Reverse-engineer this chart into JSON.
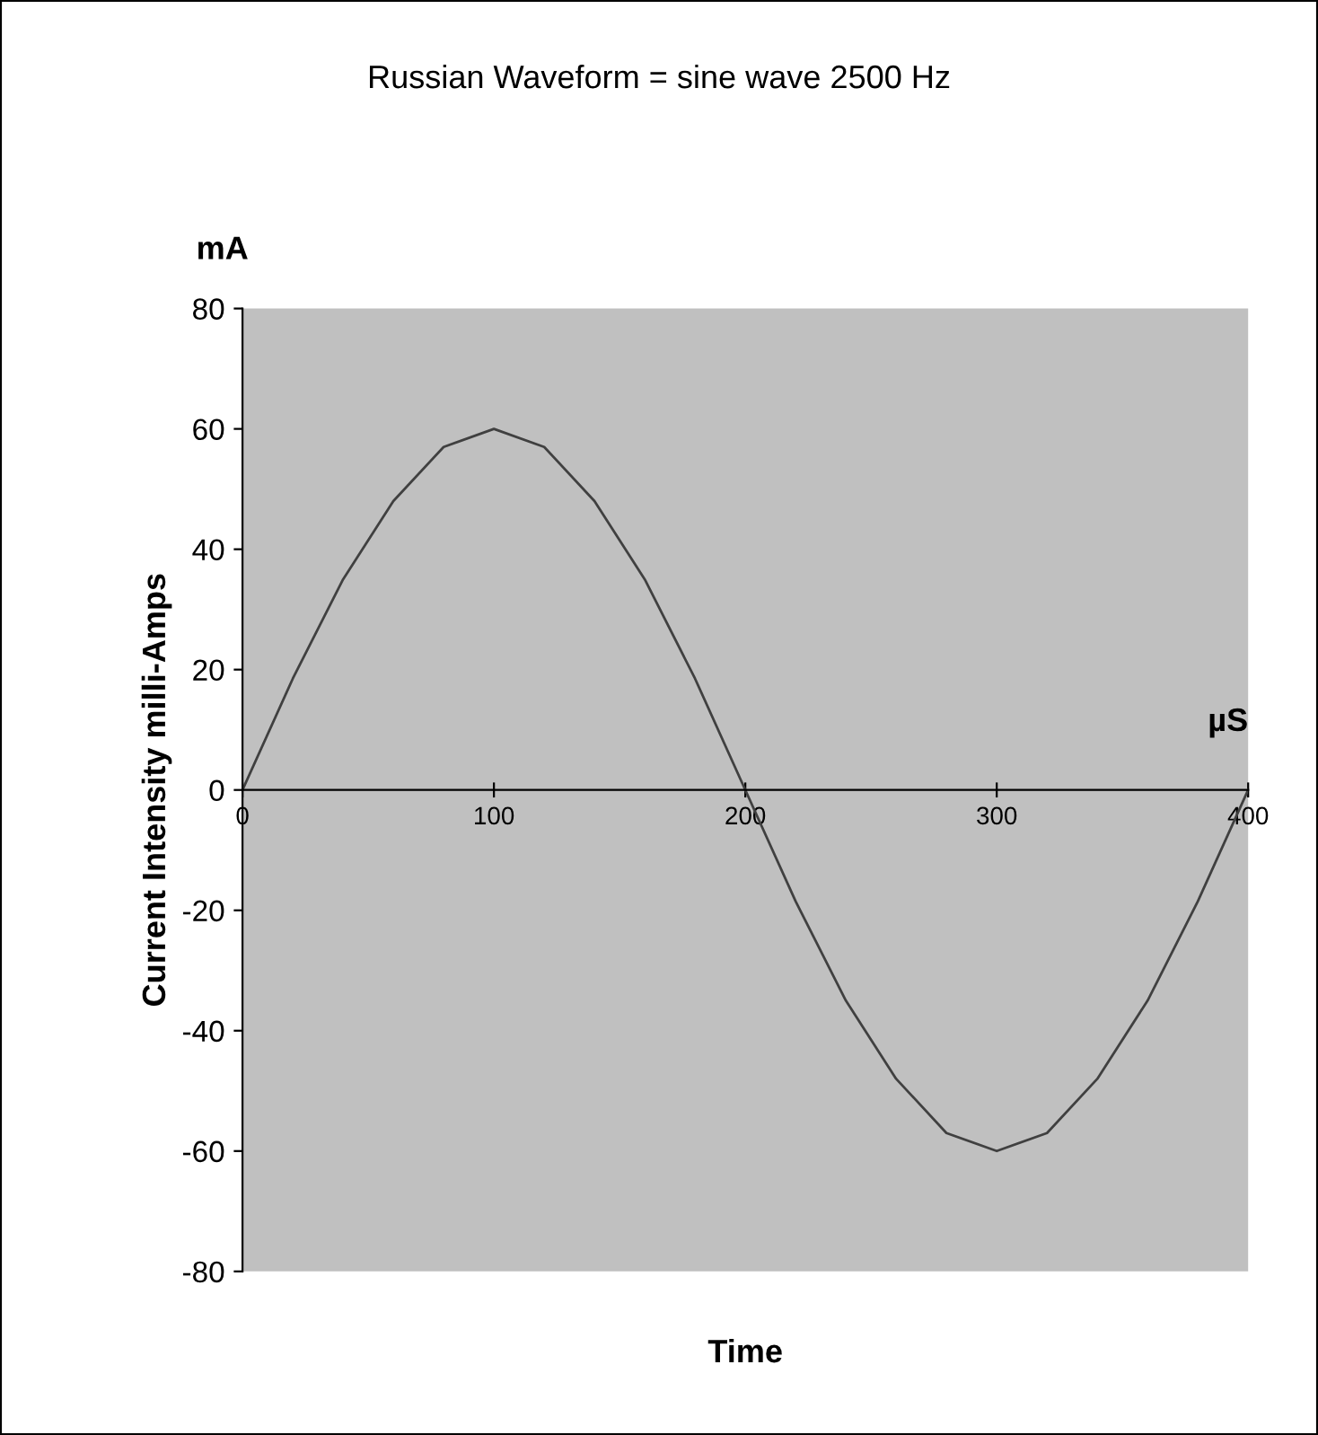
{
  "chart_data": {
    "type": "line",
    "title": "Russian Waveform = sine wave 2500 Hz",
    "xlabel": "Time",
    "ylabel": "Current Intensity milli-Amps",
    "annotations": [
      "mA",
      "µS"
    ],
    "x": [
      0,
      20,
      40,
      60,
      80,
      100,
      120,
      140,
      160,
      180,
      200,
      220,
      240,
      260,
      280,
      300,
      320,
      340,
      360,
      380,
      400
    ],
    "series": [
      {
        "color": "#404040",
        "values": [
          0,
          18.5,
          35,
          48,
          57,
          60,
          57,
          48,
          35,
          18.5,
          0,
          -18.5,
          -35,
          -48,
          -57,
          -60,
          -57,
          -48,
          -35,
          -18.5,
          0
        ]
      }
    ],
    "xlim": [
      0,
      400
    ],
    "xticks": [
      0,
      100,
      200,
      300,
      400
    ],
    "ylim": [
      -80,
      80
    ],
    "yticks": [
      -80,
      -60,
      -40,
      -20,
      0,
      20,
      40,
      60,
      80
    ],
    "grid": false,
    "legend": false,
    "marker": "none",
    "line_style": "solid"
  }
}
